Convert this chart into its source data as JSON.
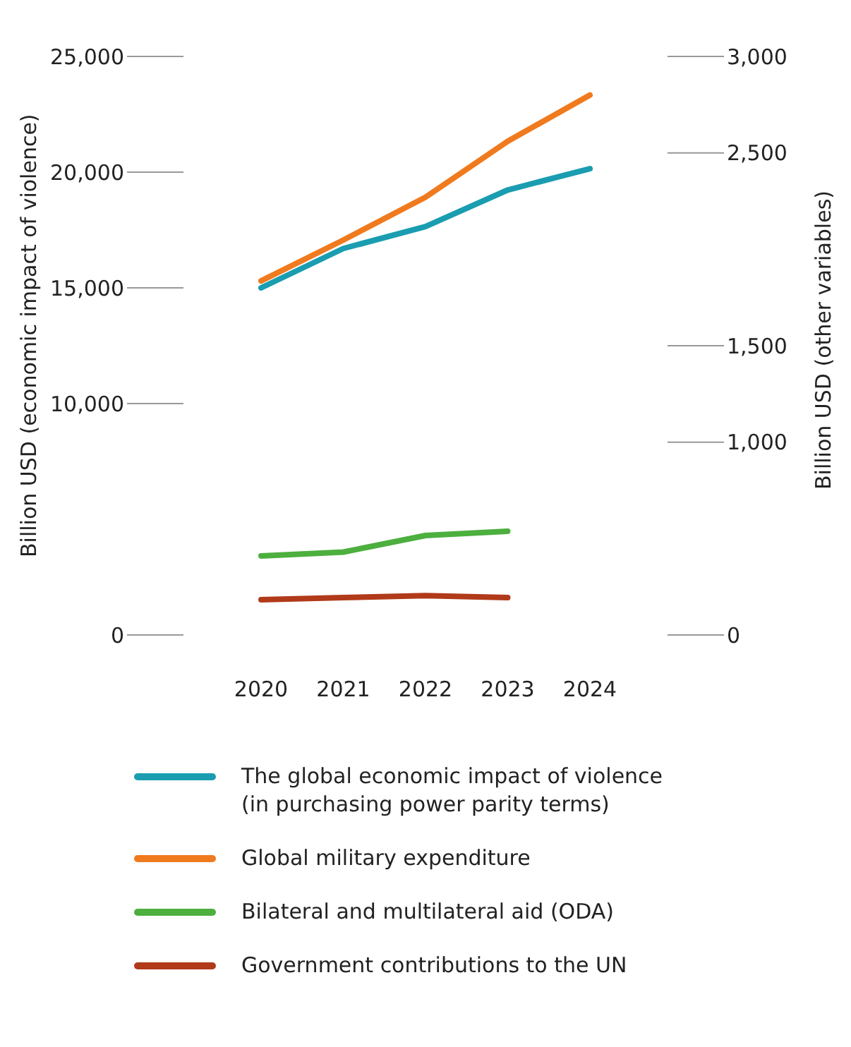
{
  "chart_data": {
    "type": "line",
    "categories": [
      "2020",
      "2021",
      "2022",
      "2023",
      "2024"
    ],
    "ylabel": "Billion USD (economic impact of violence)",
    "y2label": "Billion USD (other variables)",
    "ylim": [
      0,
      25000
    ],
    "yticks": [
      {
        "value": 0,
        "label": "0"
      },
      {
        "value": 10000,
        "label": "10,000"
      },
      {
        "value": 15000,
        "label": "15,000"
      },
      {
        "value": 20000,
        "label": "20,000"
      },
      {
        "value": 25000,
        "label": "25,000"
      }
    ],
    "y2lim": [
      0,
      3000
    ],
    "y2ticks": [
      {
        "value": 0,
        "label": "0"
      },
      {
        "value": 1000,
        "label": "1,000"
      },
      {
        "value": 1500,
        "label": "1,500"
      },
      {
        "value": 2500,
        "label": "2,500"
      },
      {
        "value": 3000,
        "label": "3,000"
      }
    ],
    "legend": "bottom",
    "marker": "none",
    "line_style": "solid",
    "series": [
      {
        "name": "The global economic impact of violence\n(in purchasing power parity terms)",
        "color": "#1a9db0",
        "values": [
          15000,
          16700,
          17650,
          19230,
          20150
        ]
      },
      {
        "name": "Global military expenditure",
        "color": "#f07a1e",
        "axis": "y2",
        "values": [
          1836,
          2048,
          2270,
          2560,
          2800
        ]
      },
      {
        "name": "Bilateral and multilateral aid (ODA)",
        "color": "#4caf3e",
        "axis": "y2",
        "values": [
          410,
          430,
          516,
          538,
          null
        ]
      },
      {
        "name": "Government contributions to the UN",
        "color": "#b03a1a",
        "axis": "y2",
        "values": [
          183,
          194,
          204,
          194,
          null
        ]
      }
    ]
  }
}
